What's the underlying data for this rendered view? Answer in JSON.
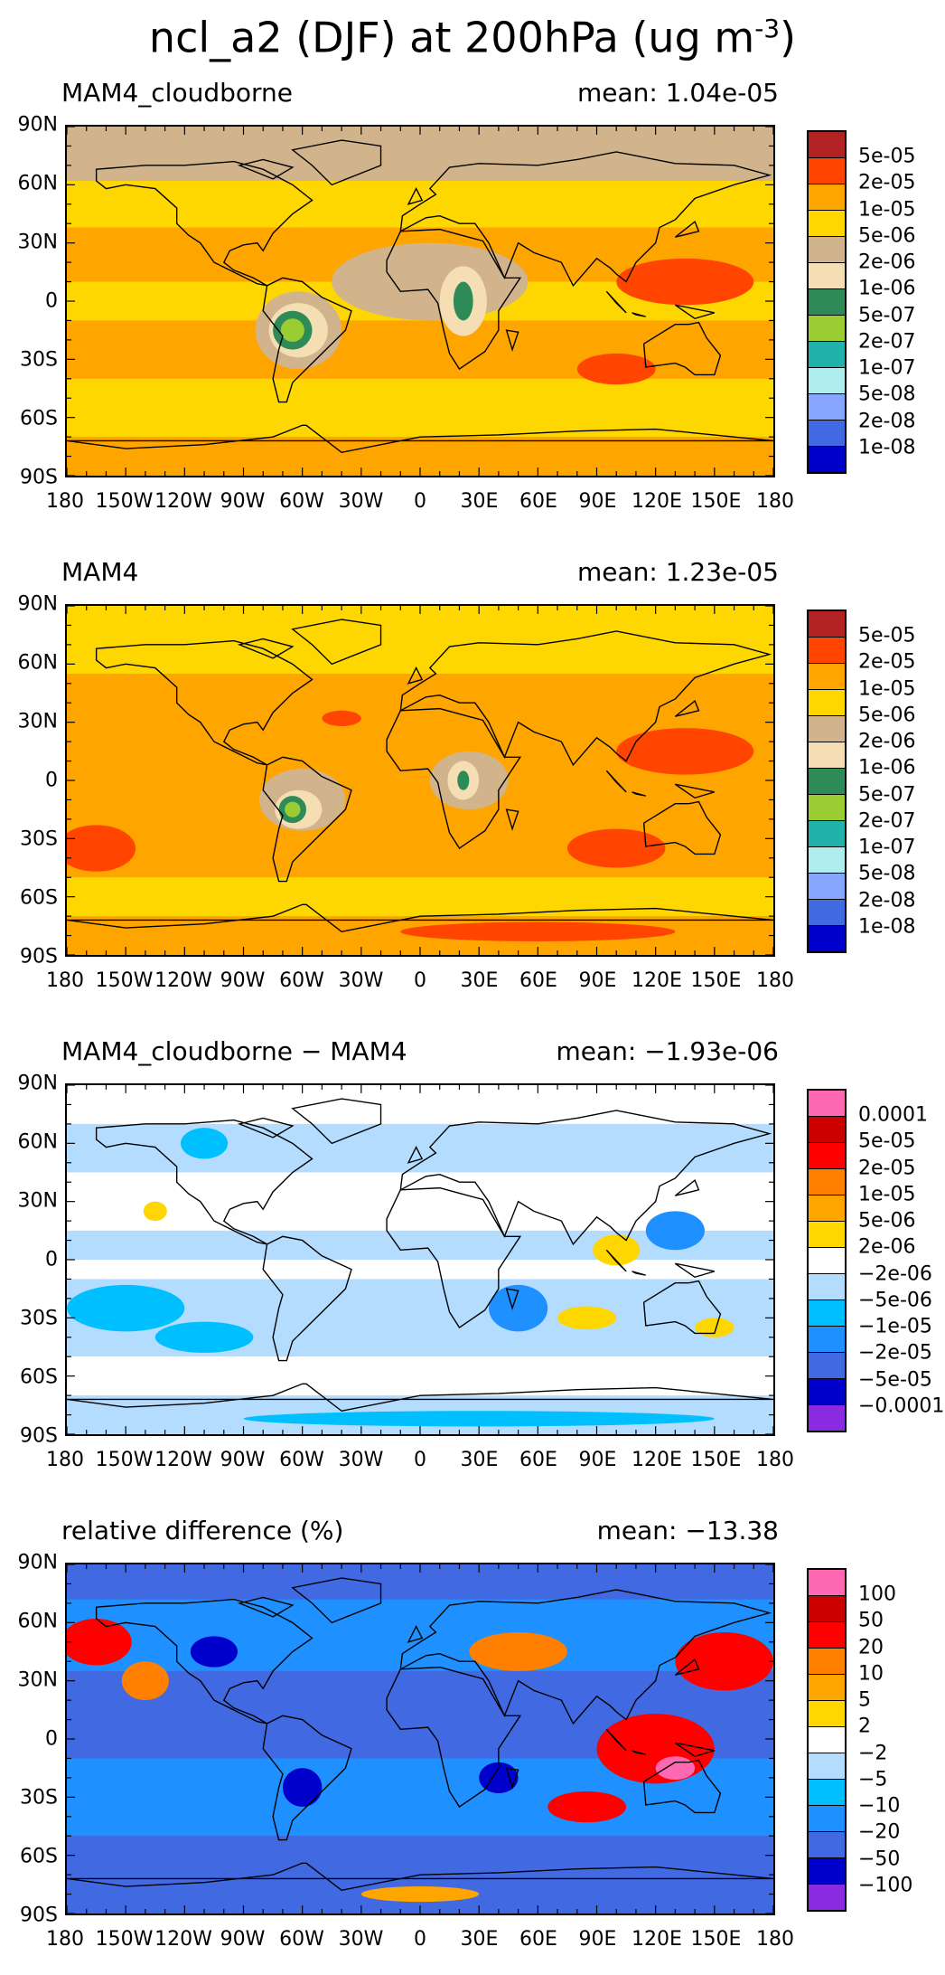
{
  "title": {
    "text": "ncl_a2 (DJF) at 200hPa (ug m",
    "exponent": "-3",
    "close": ")"
  },
  "axes": {
    "lat_labels": [
      "90N",
      "60N",
      "30N",
      "0",
      "30S",
      "60S",
      "90S"
    ],
    "lon_labels": [
      "180",
      "150W",
      "120W",
      "90W",
      "60W",
      "30W",
      "0",
      "30E",
      "60E",
      "90E",
      "120E",
      "150E",
      "180"
    ]
  },
  "colors": {
    "land_outline": "#000000",
    "conc_scale": [
      "#b22222",
      "#ff4500",
      "#ffa500",
      "#ffd700",
      "#d2b48c",
      "#f5deb3",
      "#2e8b57",
      "#9acd32",
      "#20b2aa",
      "#afeeee",
      "#87a6ff",
      "#4169e1",
      "#0000cd"
    ],
    "diff_scale": [
      "#ff69b4",
      "#cd0000",
      "#ff0000",
      "#ff7f00",
      "#ffa500",
      "#ffd700",
      "#ffffff",
      "#b4dcff",
      "#00bfff",
      "#1e90ff",
      "#4169e1",
      "#0000cd",
      "#8a2be2"
    ]
  },
  "panels": [
    {
      "label": "MAM4_cloudborne",
      "mean": "mean: 1.04e-05",
      "colorbar_labels": [
        "5e-05",
        "2e-05",
        "1e-05",
        "5e-06",
        "2e-06",
        "1e-06",
        "5e-07",
        "2e-07",
        "1e-07",
        "5e-08",
        "2e-08",
        "1e-08"
      ],
      "scale": "conc",
      "background": "#ffa500",
      "bands": [
        {
          "lat_top": 90,
          "lat_bottom": 62,
          "color": "#d2b48c"
        },
        {
          "lat_top": 62,
          "lat_bottom": 38,
          "color": "#ffd700"
        },
        {
          "lat_top": 38,
          "lat_bottom": 10,
          "color": "#ffa500"
        },
        {
          "lat_top": 10,
          "lat_bottom": -10,
          "color": "#ffd700"
        },
        {
          "lat_top": -10,
          "lat_bottom": -40,
          "color": "#ffa500"
        },
        {
          "lat_top": -40,
          "lat_bottom": -70,
          "color": "#ffd700"
        },
        {
          "lat_top": -70,
          "lat_bottom": -90,
          "color": "#ffa500"
        }
      ],
      "blobs": [
        {
          "lon": 5,
          "lat": 10,
          "rx": 50,
          "ry": 20,
          "color": "#d2b48c"
        },
        {
          "lon": -62,
          "lat": -15,
          "rx": 22,
          "ry": 20,
          "color": "#d2b48c"
        },
        {
          "lon": -62,
          "lat": -15,
          "rx": 15,
          "ry": 14,
          "color": "#f5deb3"
        },
        {
          "lon": -65,
          "lat": -15,
          "rx": 10,
          "ry": 10,
          "color": "#2e8b57"
        },
        {
          "lon": -65,
          "lat": -15,
          "rx": 6,
          "ry": 6,
          "color": "#9acd32"
        },
        {
          "lon": 22,
          "lat": 0,
          "rx": 12,
          "ry": 18,
          "color": "#f5deb3"
        },
        {
          "lon": 22,
          "lat": 0,
          "rx": 5,
          "ry": 10,
          "color": "#2e8b57"
        },
        {
          "lon": 135,
          "lat": 10,
          "rx": 35,
          "ry": 12,
          "color": "#ff4500"
        },
        {
          "lon": 100,
          "lat": -35,
          "rx": 20,
          "ry": 8,
          "color": "#ff4500"
        },
        {
          "lon": -120,
          "lat": -25,
          "rx": 25,
          "ry": 10,
          "color": "#ffa500"
        }
      ]
    },
    {
      "label": "MAM4",
      "mean": "mean: 1.23e-05",
      "colorbar_labels": [
        "5e-05",
        "2e-05",
        "1e-05",
        "5e-06",
        "2e-06",
        "1e-06",
        "5e-07",
        "2e-07",
        "1e-07",
        "5e-08",
        "2e-08",
        "1e-08"
      ],
      "scale": "conc",
      "background": "#ffa500",
      "bands": [
        {
          "lat_top": 90,
          "lat_bottom": 55,
          "color": "#ffd700"
        },
        {
          "lat_top": 55,
          "lat_bottom": -50,
          "color": "#ffa500"
        },
        {
          "lat_top": -50,
          "lat_bottom": -70,
          "color": "#ffd700"
        },
        {
          "lat_top": -70,
          "lat_bottom": -90,
          "color": "#ffa500"
        }
      ],
      "blobs": [
        {
          "lon": -165,
          "lat": -35,
          "rx": 20,
          "ry": 12,
          "color": "#ff4500"
        },
        {
          "lon": -40,
          "lat": 32,
          "rx": 10,
          "ry": 4,
          "color": "#ff4500"
        },
        {
          "lon": 135,
          "lat": 15,
          "rx": 35,
          "ry": 12,
          "color": "#ff4500"
        },
        {
          "lon": 100,
          "lat": -35,
          "rx": 25,
          "ry": 10,
          "color": "#ff4500"
        },
        {
          "lon": -60,
          "lat": -10,
          "rx": 22,
          "ry": 16,
          "color": "#d2b48c"
        },
        {
          "lon": -62,
          "lat": -15,
          "rx": 12,
          "ry": 10,
          "color": "#f5deb3"
        },
        {
          "lon": -65,
          "lat": -15,
          "rx": 7,
          "ry": 7,
          "color": "#2e8b57"
        },
        {
          "lon": -65,
          "lat": -15,
          "rx": 4,
          "ry": 4,
          "color": "#9acd32"
        },
        {
          "lon": 25,
          "lat": 0,
          "rx": 20,
          "ry": 15,
          "color": "#d2b48c"
        },
        {
          "lon": 22,
          "lat": 0,
          "rx": 8,
          "ry": 10,
          "color": "#f5deb3"
        },
        {
          "lon": 22,
          "lat": 0,
          "rx": 3,
          "ry": 5,
          "color": "#2e8b57"
        },
        {
          "lon": 60,
          "lat": -78,
          "rx": 70,
          "ry": 5,
          "color": "#ff4500"
        }
      ]
    },
    {
      "label": "MAM4_cloudborne − MAM4",
      "mean": "mean: −1.93e-06",
      "colorbar_labels": [
        "0.0001",
        "5e-05",
        "2e-05",
        "1e-05",
        "5e-06",
        "2e-06",
        "−2e-06",
        "−5e-06",
        "−1e-05",
        "−2e-05",
        "−5e-05",
        "−0.0001"
      ],
      "scale": "diff",
      "background": "#ffffff",
      "bands": [
        {
          "lat_top": 90,
          "lat_bottom": 70,
          "color": "#ffffff"
        },
        {
          "lat_top": 70,
          "lat_bottom": 45,
          "color": "#b4dcff"
        },
        {
          "lat_top": 45,
          "lat_bottom": 15,
          "color": "#ffffff"
        },
        {
          "lat_top": 15,
          "lat_bottom": 0,
          "color": "#b4dcff"
        },
        {
          "lat_top": 0,
          "lat_bottom": -10,
          "color": "#ffffff"
        },
        {
          "lat_top": -10,
          "lat_bottom": -50,
          "color": "#b4dcff"
        },
        {
          "lat_top": -50,
          "lat_bottom": -70,
          "color": "#ffffff"
        },
        {
          "lat_top": -70,
          "lat_bottom": -90,
          "color": "#b4dcff"
        }
      ],
      "blobs": [
        {
          "lon": -110,
          "lat": 60,
          "rx": 12,
          "ry": 8,
          "color": "#00bfff"
        },
        {
          "lon": -150,
          "lat": -25,
          "rx": 30,
          "ry": 12,
          "color": "#00bfff"
        },
        {
          "lon": -110,
          "lat": -40,
          "rx": 25,
          "ry": 8,
          "color": "#00bfff"
        },
        {
          "lon": 50,
          "lat": -25,
          "rx": 15,
          "ry": 12,
          "color": "#1e90ff"
        },
        {
          "lon": 130,
          "lat": 15,
          "rx": 15,
          "ry": 10,
          "color": "#1e90ff"
        },
        {
          "lon": 100,
          "lat": 5,
          "rx": 12,
          "ry": 8,
          "color": "#ffd700"
        },
        {
          "lon": 85,
          "lat": -30,
          "rx": 15,
          "ry": 6,
          "color": "#ffd700"
        },
        {
          "lon": 150,
          "lat": -35,
          "rx": 10,
          "ry": 5,
          "color": "#ffd700"
        },
        {
          "lon": -135,
          "lat": 25,
          "rx": 6,
          "ry": 5,
          "color": "#ffd700"
        },
        {
          "lon": 30,
          "lat": -82,
          "rx": 120,
          "ry": 4,
          "color": "#00bfff"
        }
      ]
    },
    {
      "label": "relative difference (%)",
      "mean": "mean: −13.38",
      "colorbar_labels": [
        "100",
        "50",
        "20",
        "10",
        "5",
        "2",
        "−2",
        "−5",
        "−10",
        "−20",
        "−50",
        "−100"
      ],
      "scale": "diff",
      "background": "#4169e1",
      "bands": [
        {
          "lat_top": 90,
          "lat_bottom": 72,
          "color": "#4169e1"
        },
        {
          "lat_top": 72,
          "lat_bottom": 35,
          "color": "#1e90ff"
        },
        {
          "lat_top": 35,
          "lat_bottom": -10,
          "color": "#4169e1"
        },
        {
          "lat_top": -10,
          "lat_bottom": -50,
          "color": "#1e90ff"
        },
        {
          "lat_top": -50,
          "lat_bottom": -90,
          "color": "#4169e1"
        }
      ],
      "blobs": [
        {
          "lon": -165,
          "lat": 50,
          "rx": 18,
          "ry": 12,
          "color": "#ff0000"
        },
        {
          "lon": -140,
          "lat": 30,
          "rx": 12,
          "ry": 10,
          "color": "#ff7f00"
        },
        {
          "lon": 50,
          "lat": 45,
          "rx": 25,
          "ry": 10,
          "color": "#ff7f00"
        },
        {
          "lon": 155,
          "lat": 40,
          "rx": 25,
          "ry": 15,
          "color": "#ff0000"
        },
        {
          "lon": 120,
          "lat": -5,
          "rx": 30,
          "ry": 18,
          "color": "#ff0000"
        },
        {
          "lon": 130,
          "lat": -15,
          "rx": 10,
          "ry": 6,
          "color": "#ff69b4"
        },
        {
          "lon": 85,
          "lat": -35,
          "rx": 20,
          "ry": 8,
          "color": "#ff0000"
        },
        {
          "lon": -105,
          "lat": 45,
          "rx": 12,
          "ry": 8,
          "color": "#0000cd"
        },
        {
          "lon": -60,
          "lat": -25,
          "rx": 10,
          "ry": 10,
          "color": "#0000cd"
        },
        {
          "lon": 40,
          "lat": -20,
          "rx": 10,
          "ry": 8,
          "color": "#0000cd"
        },
        {
          "lon": 0,
          "lat": -80,
          "rx": 30,
          "ry": 4,
          "color": "#ffa500"
        }
      ]
    }
  ]
}
